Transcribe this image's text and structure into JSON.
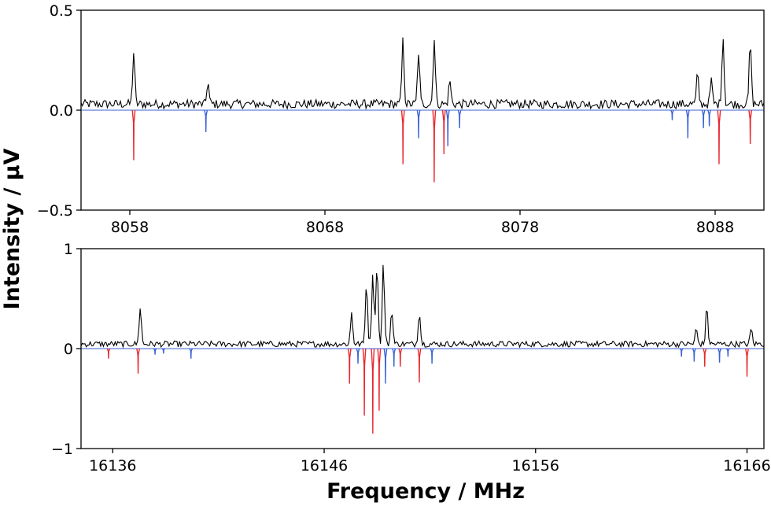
{
  "chart_data": [
    {
      "type": "line",
      "panel": "top",
      "xlim": [
        8055.5,
        8090.5
      ],
      "ylim": [
        -0.5,
        0.5
      ],
      "xticks": [
        8058,
        8068,
        8078,
        8088
      ],
      "xtick_labels": [
        "8058",
        "8068",
        "8078",
        "8088"
      ],
      "yticks": [
        -0.5,
        0.0,
        0.5
      ],
      "ytick_labels": [
        "−0.5",
        "0.0",
        "0.5"
      ],
      "baseline": 0,
      "noise_level": 0.045,
      "series": [
        {
          "role": "observed",
          "color": "#000000",
          "peaks": [
            {
              "x": 8058.2,
              "y": 0.26
            },
            {
              "x": 8062.0,
              "y": 0.11
            },
            {
              "x": 8072.0,
              "y": 0.32
            },
            {
              "x": 8072.8,
              "y": 0.26
            },
            {
              "x": 8073.6,
              "y": 0.33
            },
            {
              "x": 8074.4,
              "y": 0.12
            },
            {
              "x": 8087.1,
              "y": 0.15
            },
            {
              "x": 8087.8,
              "y": 0.12
            },
            {
              "x": 8088.4,
              "y": 0.34
            },
            {
              "x": 8089.8,
              "y": 0.31
            }
          ]
        },
        {
          "role": "simulated-red",
          "color": "#e8282e",
          "peaks": [
            {
              "x": 8058.2,
              "y": -0.25
            },
            {
              "x": 8072.0,
              "y": -0.27
            },
            {
              "x": 8073.6,
              "y": -0.36
            },
            {
              "x": 8074.1,
              "y": -0.22
            },
            {
              "x": 8088.2,
              "y": -0.27
            },
            {
              "x": 8089.8,
              "y": -0.17
            }
          ]
        },
        {
          "role": "simulated-blue",
          "color": "#3a62d6",
          "peaks": [
            {
              "x": 8061.9,
              "y": -0.11
            },
            {
              "x": 8072.8,
              "y": -0.14
            },
            {
              "x": 8074.3,
              "y": -0.18
            },
            {
              "x": 8074.9,
              "y": -0.09
            },
            {
              "x": 8085.8,
              "y": -0.05
            },
            {
              "x": 8086.6,
              "y": -0.14
            },
            {
              "x": 8087.4,
              "y": -0.09
            },
            {
              "x": 8087.7,
              "y": -0.08
            }
          ]
        }
      ]
    },
    {
      "type": "line",
      "panel": "bottom",
      "xlim": [
        16134.5,
        16166.8
      ],
      "ylim": [
        -1,
        1
      ],
      "xticks": [
        16136,
        16146,
        16156,
        16166
      ],
      "xtick_labels": [
        "16136",
        "16146",
        "16156",
        "16166"
      ],
      "yticks": [
        -1,
        0,
        1
      ],
      "ytick_labels": [
        "−1",
        "0",
        "1"
      ],
      "baseline": 0,
      "noise_level": 0.06,
      "series": [
        {
          "role": "observed",
          "color": "#000000",
          "peaks": [
            {
              "x": 16137.3,
              "y": 0.37
            },
            {
              "x": 16147.3,
              "y": 0.32
            },
            {
              "x": 16148.0,
              "y": 0.62
            },
            {
              "x": 16148.3,
              "y": 0.72
            },
            {
              "x": 16148.5,
              "y": 0.82
            },
            {
              "x": 16148.8,
              "y": 0.8
            },
            {
              "x": 16149.2,
              "y": 0.35
            },
            {
              "x": 16150.5,
              "y": 0.33
            },
            {
              "x": 16164.1,
              "y": 0.37
            },
            {
              "x": 16163.6,
              "y": 0.15
            },
            {
              "x": 16166.2,
              "y": 0.15
            }
          ]
        },
        {
          "role": "simulated-red",
          "color": "#e8282e",
          "peaks": [
            {
              "x": 16135.8,
              "y": -0.1
            },
            {
              "x": 16137.2,
              "y": -0.25
            },
            {
              "x": 16147.2,
              "y": -0.35
            },
            {
              "x": 16147.9,
              "y": -0.67
            },
            {
              "x": 16148.3,
              "y": -0.85
            },
            {
              "x": 16148.6,
              "y": -0.62
            },
            {
              "x": 16149.6,
              "y": -0.18
            },
            {
              "x": 16150.5,
              "y": -0.34
            },
            {
              "x": 16164.0,
              "y": -0.18
            },
            {
              "x": 16166.0,
              "y": -0.28
            }
          ]
        },
        {
          "role": "simulated-blue",
          "color": "#3a62d6",
          "peaks": [
            {
              "x": 16138.0,
              "y": -0.06
            },
            {
              "x": 16138.4,
              "y": -0.05
            },
            {
              "x": 16139.7,
              "y": -0.1
            },
            {
              "x": 16147.6,
              "y": -0.15
            },
            {
              "x": 16148.9,
              "y": -0.35
            },
            {
              "x": 16149.3,
              "y": -0.18
            },
            {
              "x": 16151.1,
              "y": -0.15
            },
            {
              "x": 16162.9,
              "y": -0.08
            },
            {
              "x": 16163.5,
              "y": -0.13
            },
            {
              "x": 16164.7,
              "y": -0.14
            },
            {
              "x": 16165.1,
              "y": -0.08
            }
          ]
        }
      ]
    }
  ],
  "labels": {
    "ylabel": "Intensity / μV",
    "xlabel": "Frequency / MHz"
  }
}
